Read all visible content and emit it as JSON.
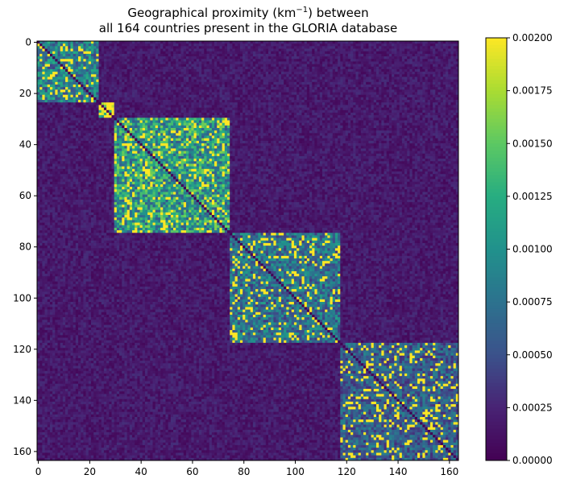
{
  "chart_data": {
    "type": "heatmap",
    "title_line1": "Geographical proximity (km",
    "title_sup": "−1",
    "title_line1_end": ") between",
    "title_line2": "all 164 countries present in the GLORIA database",
    "n": 164,
    "x_ticks": [
      0,
      20,
      40,
      60,
      80,
      100,
      120,
      140,
      160
    ],
    "y_ticks": [
      0,
      20,
      40,
      60,
      80,
      100,
      120,
      140,
      160
    ],
    "x_tick_labels": [
      "0",
      "20",
      "40",
      "60",
      "80",
      "100",
      "120",
      "140",
      "160"
    ],
    "y_tick_labels": [
      "0",
      "20",
      "40",
      "60",
      "80",
      "100",
      "120",
      "140",
      "160"
    ],
    "colorbar": {
      "range": [
        0,
        0.002
      ],
      "ticks": [
        0,
        0.00025,
        0.0005,
        0.00075,
        0.001,
        0.00125,
        0.0015,
        0.00175,
        0.002
      ],
      "tick_labels": [
        "0.00000",
        "0.00025",
        "0.00050",
        "0.00075",
        "0.00100",
        "0.00125",
        "0.00150",
        "0.00175",
        "0.00200"
      ],
      "colormap": "viridis"
    },
    "blocks": [
      {
        "start": 0,
        "end": 24,
        "level": 0.00085
      },
      {
        "start": 24,
        "end": 30,
        "level": 0.0021
      },
      {
        "start": 30,
        "end": 75,
        "level": 0.0011
      },
      {
        "start": 75,
        "end": 118,
        "level": 0.00075
      },
      {
        "start": 118,
        "end": 164,
        "level": 0.0006
      }
    ],
    "background_level": 0.00012,
    "diagonal_level": 0
  }
}
